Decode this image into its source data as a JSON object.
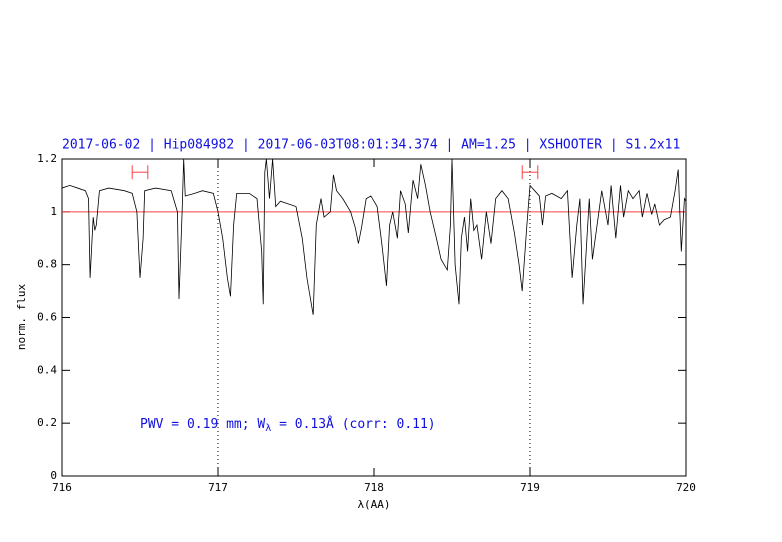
{
  "chart_data": {
    "type": "line",
    "title": "2017-06-02 | Hip084982 | 2017-06-03T08:01:34.374 | AM=1.25 | XSHOOTER | S1.2x11",
    "xlabel": "λ(AA)",
    "ylabel": "norm. flux",
    "annotation": {
      "pre": "PWV = 0.19 mm; W",
      "sub": "λ",
      "post": " = 0.13Å (corr: 0.11)"
    },
    "xlim": [
      716,
      720
    ],
    "ylim": [
      0,
      1.2
    ],
    "xticks": [
      716,
      717,
      718,
      719,
      720
    ],
    "yticks": [
      0,
      0.2,
      0.4,
      0.6,
      0.8,
      1,
      1.2
    ],
    "hline": 1,
    "hline_color": "#ff4040",
    "vlines": [
      717,
      719
    ],
    "intervals": [
      [
        716.45,
        716.55
      ],
      [
        718.95,
        719.05
      ]
    ],
    "interval_y": 1.15,
    "interval_color": "#ff4040",
    "x": [
      716.0,
      716.05,
      716.1,
      716.15,
      716.17,
      716.18,
      716.2,
      716.21,
      716.22,
      716.24,
      716.3,
      716.4,
      716.45,
      716.48,
      716.5,
      716.52,
      716.53,
      716.6,
      716.7,
      716.74,
      716.75,
      716.77,
      716.78,
      716.79,
      716.85,
      716.9,
      716.97,
      717.0,
      717.03,
      717.06,
      717.08,
      717.1,
      717.12,
      717.2,
      717.25,
      717.28,
      717.29,
      717.3,
      717.31,
      717.33,
      717.35,
      717.37,
      717.4,
      717.45,
      717.5,
      717.54,
      717.57,
      717.61,
      717.63,
      717.66,
      717.68,
      717.72,
      717.74,
      717.76,
      717.8,
      717.85,
      717.88,
      717.9,
      717.92,
      717.95,
      717.98,
      718.02,
      718.05,
      718.08,
      718.1,
      718.12,
      718.15,
      718.17,
      718.2,
      718.22,
      718.25,
      718.28,
      718.3,
      718.33,
      718.36,
      718.4,
      718.43,
      718.45,
      718.47,
      718.49,
      718.5,
      718.52,
      718.545,
      718.56,
      718.58,
      718.6,
      718.62,
      718.64,
      718.66,
      718.69,
      718.72,
      718.75,
      718.78,
      718.82,
      718.86,
      718.9,
      718.93,
      718.95,
      718.98,
      719.0,
      719.03,
      719.06,
      719.08,
      719.1,
      719.14,
      719.2,
      719.24,
      719.27,
      719.3,
      719.32,
      719.34,
      719.36,
      719.38,
      719.4,
      719.46,
      719.5,
      719.52,
      719.55,
      719.58,
      719.6,
      719.63,
      719.66,
      719.7,
      719.72,
      719.75,
      719.78,
      719.8,
      719.83,
      719.86,
      719.9,
      719.93,
      719.95,
      719.97,
      719.99,
      720.0
    ],
    "series": [
      {
        "color": "#000000",
        "values": [
          1.09,
          1.1,
          1.09,
          1.08,
          1.05,
          0.75,
          0.98,
          0.93,
          0.95,
          1.08,
          1.09,
          1.08,
          1.07,
          1.0,
          0.75,
          0.9,
          1.08,
          1.09,
          1.08,
          1.0,
          0.67,
          1.0,
          1.2,
          1.06,
          1.07,
          1.08,
          1.07,
          1.0,
          0.9,
          0.75,
          0.68,
          0.95,
          1.07,
          1.07,
          1.05,
          0.85,
          0.65,
          1.15,
          1.2,
          1.05,
          1.2,
          1.02,
          1.04,
          1.03,
          1.02,
          0.9,
          0.75,
          0.61,
          0.95,
          1.05,
          0.98,
          1.0,
          1.14,
          1.08,
          1.05,
          1.0,
          0.94,
          0.88,
          0.94,
          1.05,
          1.06,
          1.02,
          0.88,
          0.72,
          0.95,
          1.0,
          0.9,
          1.08,
          1.03,
          0.92,
          1.12,
          1.05,
          1.18,
          1.1,
          1.0,
          0.9,
          0.82,
          0.8,
          0.78,
          0.95,
          1.2,
          0.8,
          0.65,
          0.9,
          0.98,
          0.85,
          1.05,
          0.93,
          0.95,
          0.82,
          1.0,
          0.88,
          1.05,
          1.08,
          1.05,
          0.92,
          0.8,
          0.7,
          0.95,
          1.1,
          1.08,
          1.06,
          0.95,
          1.06,
          1.07,
          1.05,
          1.08,
          0.75,
          0.95,
          1.05,
          0.65,
          0.85,
          1.05,
          0.82,
          1.08,
          0.95,
          1.1,
          0.9,
          1.1,
          0.98,
          1.08,
          1.05,
          1.08,
          0.98,
          1.07,
          0.99,
          1.03,
          0.95,
          0.97,
          0.98,
          1.08,
          1.16,
          0.85,
          1.05,
          1.04
        ]
      }
    ]
  }
}
